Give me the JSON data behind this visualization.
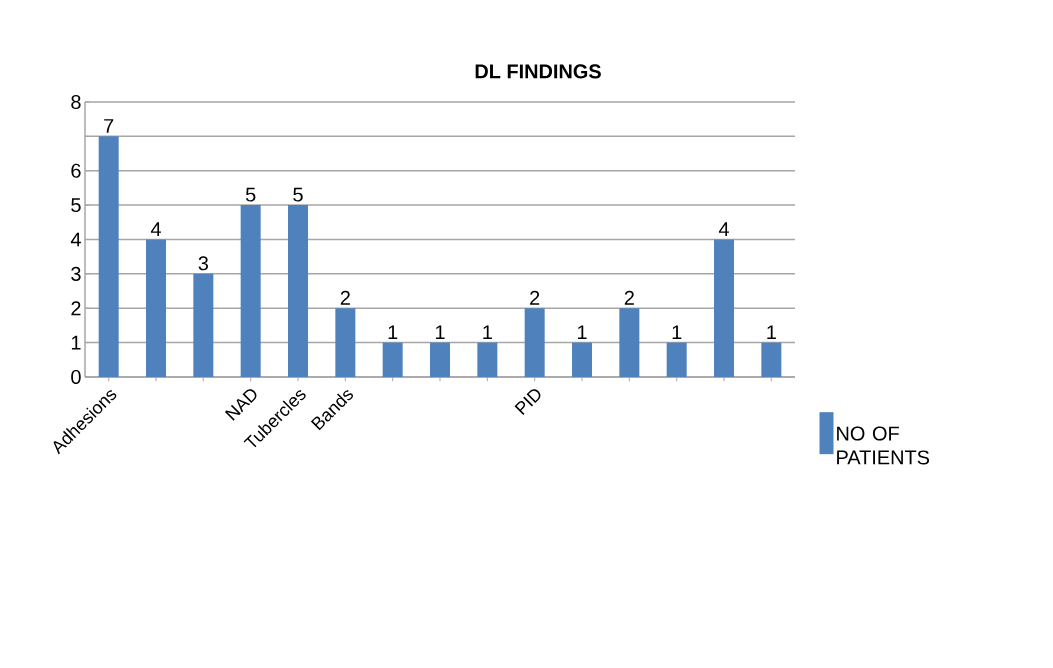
{
  "chart_data": {
    "type": "bar",
    "title": "DL FINDINGS",
    "categories": [
      "Adhesions",
      null,
      null,
      "NAD",
      "Tubercles",
      "Bands",
      null,
      null,
      null,
      "PID",
      null,
      null,
      null,
      null,
      null
    ],
    "series": [
      {
        "name": "NO OF PATIENTS",
        "color": "#4f81bd",
        "values": [
          7,
          4,
          3,
          5,
          5,
          2,
          1,
          1,
          1,
          2,
          1,
          2,
          1,
          4,
          1
        ]
      }
    ],
    "ylim": [
      0,
      8
    ],
    "yticks": [
      0,
      1,
      2,
      3,
      4,
      5,
      6,
      {
        "value": 7,
        "label": null
      },
      8
    ],
    "grid": "y",
    "legend": "right",
    "data_labels": true
  }
}
